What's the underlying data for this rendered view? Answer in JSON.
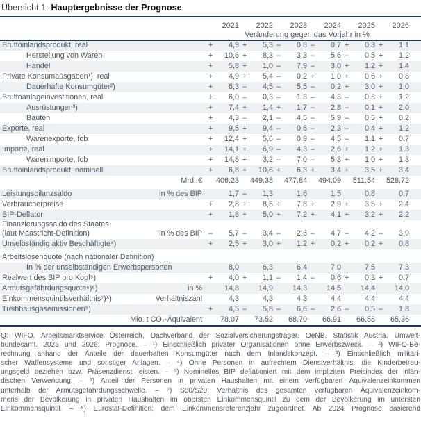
{
  "title": {
    "prefix": "Übersicht 1: ",
    "main": "Hauptergebnisse der Prognose"
  },
  "colors": {
    "rule_navy": "#1b3a60",
    "row_shade": "#eef1f4",
    "text": "#4d5863"
  },
  "table": {
    "years": [
      "2021",
      "2022",
      "2023",
      "2024",
      "2025",
      "2026"
    ],
    "subheader": "Veränderung gegen das Vorjahr in %",
    "rows": [
      {
        "label": "Bruttoinlandsprodukt, real",
        "indent": false,
        "unit": "",
        "values": [
          [
            "+",
            "4,9"
          ],
          [
            "+",
            "5,3"
          ],
          [
            "–",
            "0,8"
          ],
          [
            "–",
            "0,7"
          ],
          [
            "+",
            "0,3"
          ],
          [
            "+",
            "1,1"
          ]
        ]
      },
      {
        "label": "Herstellung von Waren",
        "indent": true,
        "unit": "",
        "values": [
          [
            "+",
            "10,6"
          ],
          [
            "+",
            "8,3"
          ],
          [
            "–",
            "3,3"
          ],
          [
            "–",
            "5,6"
          ],
          [
            "–",
            "0,5"
          ],
          [
            "+",
            "1,2"
          ]
        ]
      },
      {
        "label": "Handel",
        "indent": true,
        "unit": "",
        "values": [
          [
            "+",
            "5,8"
          ],
          [
            "+",
            "1,0"
          ],
          [
            "–",
            "7,9"
          ],
          [
            "–",
            "3,0"
          ],
          [
            "+",
            "1,2"
          ],
          [
            "+",
            "1,4"
          ]
        ]
      },
      {
        "label": "Private Konsumausgaben¹), real",
        "indent": false,
        "unit": "",
        "values": [
          [
            "+",
            "4,9"
          ],
          [
            "+",
            "5,4"
          ],
          [
            "–",
            "0,2"
          ],
          [
            "+",
            "1,0"
          ],
          [
            "+",
            "0,6"
          ],
          [
            "+",
            "0,8"
          ]
        ]
      },
      {
        "label": "Dauerhafte Konsumgüter²)",
        "indent": true,
        "unit": "",
        "values": [
          [
            "+",
            "6,3"
          ],
          [
            "–",
            "4,5"
          ],
          [
            "–",
            "5,5"
          ],
          [
            "–",
            "0,2"
          ],
          [
            "+",
            "3,0"
          ],
          [
            "+",
            "1,0"
          ]
        ]
      },
      {
        "label": "Bruttoanlageinvestitionen, real",
        "indent": false,
        "unit": "",
        "values": [
          [
            "+",
            "6,0"
          ],
          [
            "–",
            "0,3"
          ],
          [
            "–",
            "1,3"
          ],
          [
            "–",
            "4,3"
          ],
          [
            "–",
            "0,3"
          ],
          [
            "+",
            "1,2"
          ]
        ]
      },
      {
        "label": "Ausrüstungen³)",
        "indent": true,
        "unit": "",
        "values": [
          [
            "+",
            "7,4"
          ],
          [
            "+",
            "1,4"
          ],
          [
            "+",
            "1,7"
          ],
          [
            "–",
            "2,8"
          ],
          [
            "–",
            "0,1"
          ],
          [
            "+",
            "2,0"
          ]
        ]
      },
      {
        "label": "Bauten",
        "indent": true,
        "unit": "",
        "values": [
          [
            "+",
            "4,3"
          ],
          [
            "–",
            "2,1"
          ],
          [
            "–",
            "4,5"
          ],
          [
            "–",
            "5,9"
          ],
          [
            "–",
            "0,5"
          ],
          [
            "+",
            "0,2"
          ]
        ]
      },
      {
        "label": "Exporte, real",
        "indent": false,
        "unit": "",
        "values": [
          [
            "+",
            "9,5"
          ],
          [
            "+",
            "9,4"
          ],
          [
            "–",
            "0,6"
          ],
          [
            "–",
            "2,3"
          ],
          [
            "–",
            "0,4"
          ],
          [
            "+",
            "1,2"
          ]
        ]
      },
      {
        "label": "Warenexporte, fob",
        "indent": true,
        "unit": "",
        "values": [
          [
            "+",
            "12,4"
          ],
          [
            "+",
            "5,6"
          ],
          [
            "–",
            "0,9"
          ],
          [
            "–",
            "4,5"
          ],
          [
            "–",
            "1,1"
          ],
          [
            "+",
            "0,7"
          ]
        ]
      },
      {
        "label": "Importe, real",
        "indent": false,
        "unit": "",
        "values": [
          [
            "+",
            "14,1"
          ],
          [
            "+",
            "6,9"
          ],
          [
            "–",
            "4,3"
          ],
          [
            "–",
            "2,6"
          ],
          [
            "+",
            "1,2"
          ],
          [
            "+",
            "1,3"
          ]
        ]
      },
      {
        "label": "Warenimporte, fob",
        "indent": true,
        "unit": "",
        "values": [
          [
            "+",
            "14,8"
          ],
          [
            "+",
            "3,2"
          ],
          [
            "–",
            "7,0"
          ],
          [
            "–",
            "5,3"
          ],
          [
            "+",
            "1,0"
          ],
          [
            "+",
            "1,3"
          ]
        ]
      },
      {
        "label": "Bruttoinlandsprodukt, nominell",
        "indent": false,
        "unit": "",
        "values": [
          [
            "+",
            "6,8"
          ],
          [
            "+",
            "10,6"
          ],
          [
            "+",
            "6,3"
          ],
          [
            "+",
            "3,4"
          ],
          [
            "+",
            "3,5"
          ],
          [
            "+",
            "3,4"
          ]
        ]
      },
      {
        "label": "",
        "indent": false,
        "unit": "Mrd. €",
        "gap_after": true,
        "values": [
          [
            "",
            "406,23"
          ],
          [
            "",
            "449,38"
          ],
          [
            "",
            "477,84"
          ],
          [
            "",
            "494,09"
          ],
          [
            "",
            "511,54"
          ],
          [
            "",
            "528,72"
          ]
        ]
      },
      {
        "label": "Leistungsbilanzsaldo",
        "indent": false,
        "unit": "in % des BIP",
        "values": [
          [
            "",
            "1,7"
          ],
          [
            "–",
            "1,3"
          ],
          [
            "",
            "1,6"
          ],
          [
            "",
            "1,5"
          ],
          [
            "",
            "0,8"
          ],
          [
            "",
            "0,7"
          ]
        ]
      },
      {
        "label": "Verbraucherpreise",
        "indent": false,
        "unit": "",
        "values": [
          [
            "+",
            "2,8"
          ],
          [
            "+",
            "8,6"
          ],
          [
            "+",
            "7,8"
          ],
          [
            "+",
            "2,9"
          ],
          [
            "+",
            "3,5"
          ],
          [
            "+",
            "2,4"
          ]
        ]
      },
      {
        "label": "BIP-Deflator",
        "indent": false,
        "unit": "",
        "values": [
          [
            "+",
            "1,8"
          ],
          [
            "+",
            "5,0"
          ],
          [
            "+",
            "7,2"
          ],
          [
            "+",
            "4,1"
          ],
          [
            "+",
            "3,2"
          ],
          [
            "+",
            "2,2"
          ]
        ]
      },
      {
        "label": "Finanzierungssaldo des Staates\n(laut Maastricht-Definition)",
        "indent": false,
        "unit": "in % des BIP",
        "values": [
          [
            "–",
            "5,7"
          ],
          [
            "–",
            "3,4"
          ],
          [
            "–",
            "2,6"
          ],
          [
            "–",
            "4,7"
          ],
          [
            "–",
            "4,2"
          ],
          [
            "–",
            "3,9"
          ]
        ]
      },
      {
        "label": "Unselbständig aktiv Beschäftigte⁴)",
        "indent": false,
        "unit": "",
        "values": [
          [
            "+",
            "2,5"
          ],
          [
            "+",
            "3,0"
          ],
          [
            "+",
            "1,2"
          ],
          [
            "+",
            "0,2"
          ],
          [
            "+",
            "0,2"
          ],
          [
            "+",
            "0,8"
          ]
        ]
      },
      {
        "label": "Arbeitslosenquote (nach nationaler Definition)",
        "indent": false,
        "unit": "",
        "gap_before": true,
        "values": [
          [
            "",
            ""
          ],
          [
            "",
            ""
          ],
          [
            "",
            ""
          ],
          [
            "",
            ""
          ],
          [
            "",
            ""
          ],
          [
            "",
            ""
          ]
        ]
      },
      {
        "label": "In % der unselbständigen Erwerbspersonen",
        "indent": true,
        "unit": "",
        "values": [
          [
            "",
            "8,0"
          ],
          [
            "",
            "6,3"
          ],
          [
            "",
            "6,4"
          ],
          [
            "",
            "7,0"
          ],
          [
            "",
            "7,5"
          ],
          [
            "",
            "7,3"
          ]
        ]
      },
      {
        "label": "Realwert des BIP pro Kopf⁵)",
        "indent": false,
        "unit": "",
        "values": [
          [
            "+",
            "4,0"
          ],
          [
            "+",
            "1,1"
          ],
          [
            "–",
            "1,4"
          ],
          [
            "–",
            "0,6"
          ],
          [
            "+",
            "0,3"
          ],
          [
            "+",
            "0,7"
          ]
        ]
      },
      {
        "label": "Armutsgefährdungsquote⁶)⁸)",
        "indent": false,
        "unit": "in %",
        "values": [
          [
            "",
            "14,8"
          ],
          [
            "",
            "14,9"
          ],
          [
            "",
            "14,3"
          ],
          [
            "",
            "14,5"
          ],
          [
            "",
            "14,4"
          ],
          [
            "",
            "14,0"
          ]
        ]
      },
      {
        "label": "Einkommensquintilsverhältnis⁷)⁸)",
        "indent": false,
        "unit": "Verhältniszahl",
        "values": [
          [
            "",
            "4,3"
          ],
          [
            "",
            "4,3"
          ],
          [
            "",
            "4,3"
          ],
          [
            "",
            "4,4"
          ],
          [
            "",
            "4,4"
          ],
          [
            "",
            "4,4"
          ]
        ]
      },
      {
        "label": "Treibhausgasemissionen⁹)",
        "indent": false,
        "unit": "",
        "values": [
          [
            "+",
            "4,5"
          ],
          [
            "–",
            "5,8"
          ],
          [
            "–",
            "6,6"
          ],
          [
            "–",
            "2,6"
          ],
          [
            "–",
            "0,5"
          ],
          [
            "–",
            "1,8"
          ]
        ]
      },
      {
        "label": "",
        "indent": false,
        "unit": "Mio. t CO₂-Äquivalent",
        "values": [
          [
            "",
            "78,07"
          ],
          [
            "",
            "73,52"
          ],
          [
            "",
            "68,70"
          ],
          [
            "",
            "66,91"
          ],
          [
            "",
            "66,58"
          ],
          [
            "",
            "65,36"
          ]
        ]
      }
    ]
  },
  "footnotes": [
    "Q: WIFO, Arbeitsmarktservice Österreich, Dachverband der Sozialversicherungsträger, OeNB, Statistik Austria, Umwelt-",
    "bundesamt. 2025 und 2026: Prognose. – ¹) Einschließlich privater Organisationen ohne Erwerbszweck. – ²) WIFO-Be-",
    "rechnung anhand der Anteile der dauerhaften Konsumgüter nach dem Inlandskonzept. – ³) Einschließlich militäri-",
    "scher Waffensysteme und sonstiger Anlagen. – ⁴) Ohne Personen in aufrechtem Dienstverhältnis, die Kinderbetreu-",
    "ungsgeld beziehen bzw. Präsenzdienst leisten. – ⁵) Nominelles BIP deflationiert mit dem impliziten Preisindex der inlän-",
    "dischen Verwendung. – ⁶) Anteil der Personen in privaten Haushalten mit einem verfügbaren Äquivalenzeinkommen",
    "unterhalb der Armutsgefährdungsschwelle. – ⁷) S80/S20: Verhältnis des gesamten verfügbaren Äquivalenzeinkom-",
    "mens der Bevölkerung in privaten Haushalten im obersten Einkommensquintil zu dem der Bevölkerung im untersten",
    "Einkommensquintil. – ⁸) Eurostat-Definition; dem Einkommensreferenzjahr zugeordnet. Ab 2024 Prognose basierend"
  ]
}
